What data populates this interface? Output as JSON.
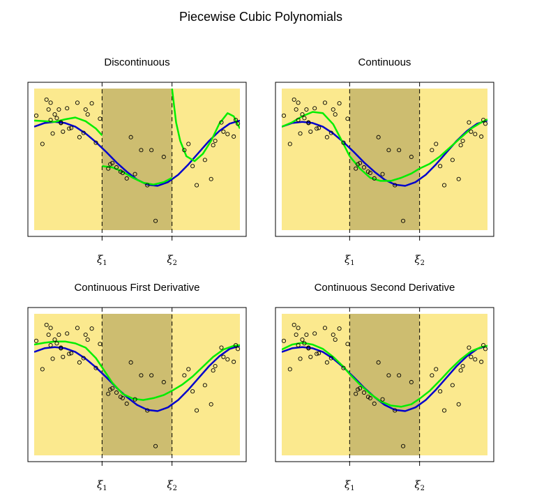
{
  "figure_title": "Piecewise Cubic Polynomials",
  "colors": {
    "outer_region": "#fbe98e",
    "middle_region": "#cdbd70",
    "true_curve": "#0000cc",
    "fitted_curve": "#00ee00",
    "points": "#000000",
    "knot_line": "#000000"
  },
  "knots": {
    "k1": 0.33,
    "k2": 0.67
  },
  "knot_labels": {
    "k1": "ξ1",
    "k2": "ξ2"
  },
  "chart_data": [
    {
      "type": "line",
      "title": "Discontinuous",
      "xlim": [
        0,
        1
      ],
      "ylim": [
        -1.3,
        1.0
      ],
      "series": [
        {
          "x": [
            0,
            0.05,
            0.1,
            0.15,
            0.2,
            0.25,
            0.3,
            0.33
          ],
          "y": [
            0.48,
            0.47,
            0.46,
            0.5,
            0.53,
            0.47,
            0.35,
            0.24
          ]
        },
        {
          "x": [
            0.33,
            0.38,
            0.43,
            0.48,
            0.53,
            0.58,
            0.63,
            0.67
          ],
          "y": [
            -0.26,
            -0.28,
            -0.35,
            -0.45,
            -0.53,
            -0.56,
            -0.52,
            -0.45
          ]
        },
        {
          "x": [
            0.67,
            0.68,
            0.69,
            0.71,
            0.74,
            0.78,
            0.82,
            0.86,
            0.9,
            0.94,
            0.97,
            1.0
          ],
          "y": [
            1.0,
            0.72,
            0.45,
            0.15,
            -0.1,
            -0.18,
            -0.06,
            0.15,
            0.43,
            0.6,
            0.55,
            0.35
          ]
        },
        {
          "x": [
            0,
            0.05,
            0.1,
            0.15,
            0.2,
            0.25,
            0.3,
            0.35,
            0.4,
            0.45,
            0.5,
            0.55,
            0.6,
            0.65,
            0.7,
            0.75,
            0.8,
            0.85,
            0.9,
            0.95,
            1.0
          ],
          "y": [
            0.38,
            0.44,
            0.46,
            0.44,
            0.38,
            0.27,
            0.13,
            -0.03,
            -0.2,
            -0.35,
            -0.48,
            -0.56,
            -0.58,
            -0.52,
            -0.4,
            -0.23,
            -0.04,
            0.15,
            0.31,
            0.43,
            0.48
          ]
        }
      ],
      "points_x": [
        0.01,
        0.04,
        0.06,
        0.07,
        0.08,
        0.08,
        0.09,
        0.1,
        0.11,
        0.12,
        0.13,
        0.13,
        0.14,
        0.16,
        0.17,
        0.18,
        0.21,
        0.22,
        0.24,
        0.25,
        0.26,
        0.28,
        0.3,
        0.32,
        0.36,
        0.37,
        0.38,
        0.4,
        0.42,
        0.43,
        0.45,
        0.47,
        0.49,
        0.52,
        0.55,
        0.57,
        0.59,
        0.63,
        0.73,
        0.75,
        0.77,
        0.79,
        0.83,
        0.86,
        0.87,
        0.88,
        0.91,
        0.92,
        0.94,
        0.97,
        0.98,
        0.99
      ],
      "points_y": [
        0.56,
        0.1,
        0.82,
        0.66,
        0.49,
        0.77,
        0.27,
        0.58,
        0.52,
        0.66,
        0.44,
        0.45,
        0.3,
        0.68,
        0.35,
        0.36,
        0.77,
        0.21,
        0.28,
        0.66,
        0.58,
        0.76,
        0.12,
        0.51,
        -0.3,
        -0.23,
        -0.21,
        -0.28,
        -0.35,
        -0.37,
        -0.46,
        0.21,
        -0.39,
        0.0,
        -0.57,
        0.0,
        -1.15,
        -0.11,
        0.0,
        0.1,
        -0.26,
        -0.57,
        -0.16,
        -0.47,
        0.08,
        0.15,
        0.45,
        0.3,
        0.26,
        0.22,
        0.49,
        0.43
      ]
    },
    {
      "type": "line",
      "title": "Continuous",
      "xlim": [
        0,
        1
      ],
      "ylim": [
        -1.3,
        1.0
      ],
      "series": [
        {
          "x": [
            0,
            0.05,
            0.1,
            0.15,
            0.2,
            0.25,
            0.3,
            0.33
          ],
          "y": [
            0.38,
            0.45,
            0.55,
            0.62,
            0.6,
            0.42,
            0.1,
            -0.1
          ]
        },
        {
          "x": [
            0.33,
            0.38,
            0.43,
            0.48,
            0.53,
            0.58,
            0.63,
            0.67
          ],
          "y": [
            -0.1,
            -0.3,
            -0.45,
            -0.5,
            -0.5,
            -0.45,
            -0.38,
            -0.3
          ]
        },
        {
          "x": [
            0.67,
            0.72,
            0.77,
            0.82,
            0.87,
            0.92,
            0.97,
            1.0
          ],
          "y": [
            -0.3,
            -0.22,
            -0.1,
            0.05,
            0.2,
            0.35,
            0.45,
            0.5
          ]
        },
        {
          "x": [
            0,
            0.05,
            0.1,
            0.15,
            0.2,
            0.25,
            0.3,
            0.35,
            0.4,
            0.45,
            0.5,
            0.55,
            0.6,
            0.65,
            0.7,
            0.75,
            0.8,
            0.85,
            0.9,
            0.95,
            1.0
          ],
          "y": [
            0.38,
            0.44,
            0.46,
            0.44,
            0.38,
            0.27,
            0.13,
            -0.03,
            -0.2,
            -0.35,
            -0.48,
            -0.56,
            -0.58,
            -0.52,
            -0.4,
            -0.23,
            -0.04,
            0.15,
            0.31,
            0.43,
            0.48
          ]
        }
      ],
      "points_x": [
        0.01,
        0.04,
        0.06,
        0.07,
        0.08,
        0.08,
        0.09,
        0.1,
        0.11,
        0.12,
        0.13,
        0.13,
        0.14,
        0.16,
        0.17,
        0.18,
        0.21,
        0.22,
        0.24,
        0.25,
        0.26,
        0.28,
        0.3,
        0.32,
        0.36,
        0.37,
        0.38,
        0.4,
        0.42,
        0.43,
        0.45,
        0.47,
        0.49,
        0.52,
        0.55,
        0.57,
        0.59,
        0.63,
        0.73,
        0.75,
        0.77,
        0.79,
        0.83,
        0.86,
        0.87,
        0.88,
        0.91,
        0.92,
        0.94,
        0.97,
        0.98,
        0.99
      ],
      "points_y": [
        0.56,
        0.1,
        0.82,
        0.66,
        0.49,
        0.77,
        0.27,
        0.58,
        0.52,
        0.66,
        0.44,
        0.45,
        0.3,
        0.68,
        0.35,
        0.36,
        0.77,
        0.21,
        0.28,
        0.66,
        0.58,
        0.76,
        0.12,
        0.51,
        -0.3,
        -0.23,
        -0.21,
        -0.28,
        -0.35,
        -0.37,
        -0.46,
        0.21,
        -0.39,
        0.0,
        -0.57,
        0.0,
        -1.15,
        -0.11,
        0.0,
        0.1,
        -0.26,
        -0.57,
        -0.16,
        -0.47,
        0.08,
        0.15,
        0.45,
        0.3,
        0.26,
        0.22,
        0.49,
        0.43
      ]
    },
    {
      "type": "line",
      "title": "Continuous First Derivative",
      "xlim": [
        0,
        1
      ],
      "ylim": [
        -1.3,
        1.0
      ],
      "series": [
        {
          "x": [
            0,
            0.05,
            0.1,
            0.15,
            0.2,
            0.25,
            0.3,
            0.33
          ],
          "y": [
            0.5,
            0.53,
            0.55,
            0.55,
            0.52,
            0.45,
            0.28,
            0.13
          ]
        },
        {
          "x": [
            0.33,
            0.38,
            0.43,
            0.48,
            0.53,
            0.58,
            0.63,
            0.67
          ],
          "y": [
            0.13,
            -0.12,
            -0.3,
            -0.38,
            -0.4,
            -0.37,
            -0.32,
            -0.25
          ]
        },
        {
          "x": [
            0.67,
            0.72,
            0.77,
            0.82,
            0.87,
            0.92,
            0.97,
            1.0
          ],
          "y": [
            -0.25,
            -0.15,
            -0.02,
            0.14,
            0.3,
            0.42,
            0.48,
            0.49
          ]
        },
        {
          "x": [
            0,
            0.05,
            0.1,
            0.15,
            0.2,
            0.25,
            0.3,
            0.35,
            0.4,
            0.45,
            0.5,
            0.55,
            0.6,
            0.65,
            0.7,
            0.75,
            0.8,
            0.85,
            0.9,
            0.95,
            1.0
          ],
          "y": [
            0.38,
            0.44,
            0.46,
            0.44,
            0.38,
            0.27,
            0.13,
            -0.03,
            -0.2,
            -0.35,
            -0.48,
            -0.56,
            -0.58,
            -0.52,
            -0.4,
            -0.23,
            -0.04,
            0.15,
            0.31,
            0.43,
            0.48
          ]
        }
      ],
      "points_x": [
        0.01,
        0.04,
        0.06,
        0.07,
        0.08,
        0.08,
        0.09,
        0.1,
        0.11,
        0.12,
        0.13,
        0.13,
        0.14,
        0.16,
        0.17,
        0.18,
        0.21,
        0.22,
        0.24,
        0.25,
        0.26,
        0.28,
        0.3,
        0.32,
        0.36,
        0.37,
        0.38,
        0.4,
        0.42,
        0.43,
        0.45,
        0.47,
        0.49,
        0.52,
        0.55,
        0.57,
        0.59,
        0.63,
        0.73,
        0.75,
        0.77,
        0.79,
        0.83,
        0.86,
        0.87,
        0.88,
        0.91,
        0.92,
        0.94,
        0.97,
        0.98,
        0.99
      ],
      "points_y": [
        0.56,
        0.1,
        0.82,
        0.66,
        0.49,
        0.77,
        0.27,
        0.58,
        0.52,
        0.66,
        0.44,
        0.45,
        0.3,
        0.68,
        0.35,
        0.36,
        0.77,
        0.21,
        0.28,
        0.66,
        0.58,
        0.76,
        0.12,
        0.51,
        -0.3,
        -0.23,
        -0.21,
        -0.28,
        -0.35,
        -0.37,
        -0.46,
        0.21,
        -0.39,
        0.0,
        -0.57,
        0.0,
        -1.15,
        -0.11,
        0.0,
        0.1,
        -0.26,
        -0.57,
        -0.16,
        -0.47,
        0.08,
        0.15,
        0.45,
        0.3,
        0.26,
        0.22,
        0.49,
        0.43
      ]
    },
    {
      "type": "line",
      "title": "Continuous Second Derivative",
      "xlim": [
        0,
        1
      ],
      "ylim": [
        -1.3,
        1.0
      ],
      "series": [
        {
          "x": [
            0,
            0.05,
            0.1,
            0.15,
            0.2,
            0.25,
            0.3,
            0.33
          ],
          "y": [
            0.42,
            0.5,
            0.53,
            0.5,
            0.43,
            0.3,
            0.14,
            0.02
          ]
        },
        {
          "x": [
            0.33,
            0.38,
            0.43,
            0.48,
            0.53,
            0.58,
            0.63,
            0.67
          ],
          "y": [
            0.02,
            -0.15,
            -0.3,
            -0.42,
            -0.49,
            -0.51,
            -0.47,
            -0.38
          ]
        },
        {
          "x": [
            0.67,
            0.72,
            0.77,
            0.82,
            0.87,
            0.92,
            0.97,
            1.0
          ],
          "y": [
            -0.38,
            -0.25,
            -0.08,
            0.1,
            0.26,
            0.39,
            0.46,
            0.48
          ]
        },
        {
          "x": [
            0,
            0.05,
            0.1,
            0.15,
            0.2,
            0.25,
            0.3,
            0.35,
            0.4,
            0.45,
            0.5,
            0.55,
            0.6,
            0.65,
            0.7,
            0.75,
            0.8,
            0.85,
            0.9,
            0.95,
            1.0
          ],
          "y": [
            0.38,
            0.44,
            0.46,
            0.44,
            0.38,
            0.27,
            0.13,
            -0.03,
            -0.2,
            -0.35,
            -0.48,
            -0.56,
            -0.58,
            -0.52,
            -0.4,
            -0.23,
            -0.04,
            0.15,
            0.31,
            0.43,
            0.48
          ]
        }
      ],
      "points_x": [
        0.01,
        0.04,
        0.06,
        0.07,
        0.08,
        0.08,
        0.09,
        0.1,
        0.11,
        0.12,
        0.13,
        0.13,
        0.14,
        0.16,
        0.17,
        0.18,
        0.21,
        0.22,
        0.24,
        0.25,
        0.26,
        0.28,
        0.3,
        0.32,
        0.36,
        0.37,
        0.38,
        0.4,
        0.42,
        0.43,
        0.45,
        0.47,
        0.49,
        0.52,
        0.55,
        0.57,
        0.59,
        0.63,
        0.73,
        0.75,
        0.77,
        0.79,
        0.83,
        0.86,
        0.87,
        0.88,
        0.91,
        0.92,
        0.94,
        0.97,
        0.98,
        0.99
      ],
      "points_y": [
        0.56,
        0.1,
        0.82,
        0.66,
        0.49,
        0.77,
        0.27,
        0.58,
        0.52,
        0.66,
        0.44,
        0.45,
        0.3,
        0.68,
        0.35,
        0.36,
        0.77,
        0.21,
        0.28,
        0.66,
        0.58,
        0.76,
        0.12,
        0.51,
        -0.3,
        -0.23,
        -0.21,
        -0.28,
        -0.35,
        -0.37,
        -0.46,
        0.21,
        -0.39,
        0.0,
        -0.57,
        0.0,
        -1.15,
        -0.11,
        0.0,
        0.1,
        -0.26,
        -0.57,
        -0.16,
        -0.47,
        0.08,
        0.15,
        0.45,
        0.3,
        0.26,
        0.22,
        0.49,
        0.43
      ]
    }
  ]
}
